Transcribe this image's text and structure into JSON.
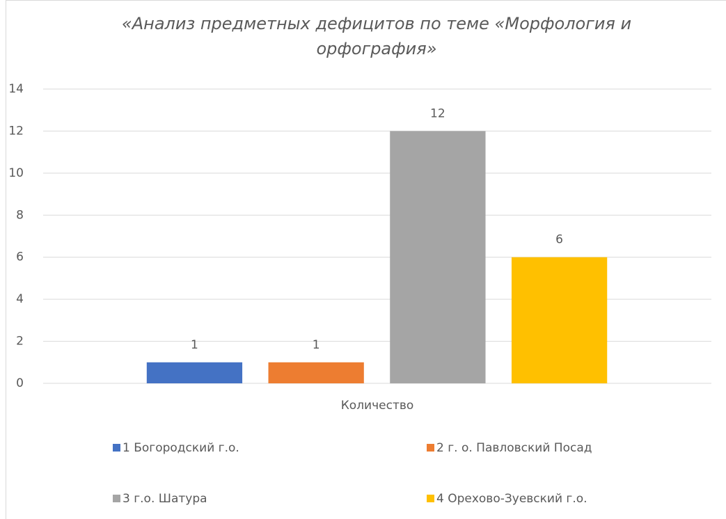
{
  "chart_data": {
    "type": "bar",
    "title": "«Анализ предметных дефицитов по теме «Морфология и орфография»",
    "categories": [
      "Количество"
    ],
    "series": [
      {
        "name": "1 Богородский г.о.",
        "color": "#4472c4",
        "values": [
          1
        ]
      },
      {
        "name": "2 г. о. Павловский Посад",
        "color": "#ed7d31",
        "values": [
          1
        ]
      },
      {
        "name": "3 г.о. Шатура",
        "color": "#a5a5a5",
        "values": [
          12
        ]
      },
      {
        "name": "4 Орехово-Зуевский г.о.",
        "color": "#ffc000",
        "values": [
          6
        ]
      }
    ],
    "ylim": [
      0,
      14
    ],
    "yticks": [
      0,
      2,
      4,
      6,
      8,
      10,
      12,
      14
    ],
    "grid": true,
    "legend": "bottom"
  }
}
